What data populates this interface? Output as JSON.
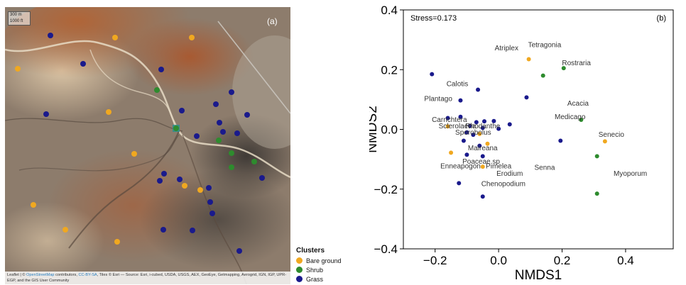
{
  "map": {
    "panel_label": "(a)",
    "scale_labels": [
      "300 m",
      "1000 ft"
    ],
    "attribution": {
      "pre": "Leaflet | © ",
      "link1": "OpenStreetMap",
      "mid": " contributors, ",
      "link2": "CC-BY-SA",
      "rest": ", Tiles © Esri — Source: Esri, i-cubed, USDA, USGS, AEX, GeoEye, Getmapping, Aerogrid, IGN, IGP, UPR-EGP, and the GIS User Community"
    }
  },
  "legend": {
    "title": "Clusters",
    "items": [
      {
        "label": "Bare ground",
        "color": "#f0a820"
      },
      {
        "label": "Shrub",
        "color": "#2e8b2e"
      },
      {
        "label": "Grass",
        "color": "#1a1a8c"
      }
    ]
  },
  "chart_data": {
    "type": "scatter",
    "panel_label": "(b)",
    "stress_label": "Stress=0.173",
    "xlabel": "NMDS1",
    "ylabel": "NMDS2",
    "xlim": [
      -0.3,
      0.55
    ],
    "ylim": [
      -0.4,
      0.4
    ],
    "xticks": [
      -0.2,
      0.0,
      0.2,
      0.4
    ],
    "yticks": [
      -0.4,
      -0.2,
      0.0,
      0.2,
      0.4
    ],
    "xticklabels": [
      "−0.2",
      "0.0",
      "0.2",
      "0.4"
    ],
    "yticklabels": [
      "−0.4",
      "−0.2",
      "0.0",
      "0.2",
      "0.4"
    ],
    "series": [
      {
        "color": "#f0a820",
        "points": [
          {
            "x": 0.095,
            "y": 0.235
          },
          {
            "x": -0.16,
            "y": 0.01
          },
          {
            "x": -0.15,
            "y": -0.078
          },
          {
            "x": -0.05,
            "y": -0.125
          },
          {
            "x": -0.035,
            "y": -0.048
          },
          {
            "x": -0.06,
            "y": -0.015
          },
          {
            "x": 0.335,
            "y": -0.04
          }
        ]
      },
      {
        "color": "#2e8b2e",
        "points": [
          {
            "x": 0.14,
            "y": 0.18
          },
          {
            "x": 0.205,
            "y": 0.205
          },
          {
            "x": 0.26,
            "y": 0.032
          },
          {
            "x": 0.31,
            "y": -0.09
          },
          {
            "x": 0.31,
            "y": -0.215
          }
        ]
      },
      {
        "color": "#1a1a8c",
        "points": [
          {
            "x": -0.21,
            "y": 0.185
          },
          {
            "x": -0.065,
            "y": 0.133
          },
          {
            "x": -0.12,
            "y": 0.097
          },
          {
            "x": 0.088,
            "y": 0.107
          },
          {
            "x": -0.16,
            "y": 0.038
          },
          {
            "x": -0.12,
            "y": 0.042
          },
          {
            "x": -0.07,
            "y": 0.024
          },
          {
            "x": -0.045,
            "y": 0.027
          },
          {
            "x": -0.015,
            "y": 0.028
          },
          {
            "x": 0.035,
            "y": 0.017
          },
          {
            "x": -0.09,
            "y": 0.012
          },
          {
            "x": -0.05,
            "y": 0.005
          },
          {
            "x": -0.1,
            "y": -0.01
          },
          {
            "x": -0.08,
            "y": -0.018
          },
          {
            "x": 0.0,
            "y": 0.002
          },
          {
            "x": -0.11,
            "y": -0.038
          },
          {
            "x": -0.06,
            "y": -0.055
          },
          {
            "x": -0.1,
            "y": -0.085
          },
          {
            "x": -0.05,
            "y": -0.09
          },
          {
            "x": 0.195,
            "y": -0.038
          },
          {
            "x": -0.125,
            "y": -0.18
          },
          {
            "x": -0.05,
            "y": -0.225
          }
        ]
      }
    ],
    "annotations": [
      {
        "text": "Tetragonia",
        "x": 0.145,
        "y": 0.275
      },
      {
        "text": "Atriplex",
        "x": 0.025,
        "y": 0.265
      },
      {
        "text": "Rostraria",
        "x": 0.245,
        "y": 0.215
      },
      {
        "text": "Calotis",
        "x": -0.13,
        "y": 0.145
      },
      {
        "text": "Plantago",
        "x": -0.19,
        "y": 0.095
      },
      {
        "text": "Acacia",
        "x": 0.25,
        "y": 0.08
      },
      {
        "text": "Medicago",
        "x": 0.225,
        "y": 0.035
      },
      {
        "text": "Carrichtera",
        "x": -0.155,
        "y": 0.025
      },
      {
        "text": "Sclerolaena",
        "x": -0.13,
        "y": 0.003
      },
      {
        "text": "Rhodanthe",
        "x": -0.05,
        "y": 0.003
      },
      {
        "text": "Sporobolus",
        "x": -0.08,
        "y": -0.018
      },
      {
        "text": "Senecio",
        "x": 0.355,
        "y": -0.025
      },
      {
        "text": "Maireana",
        "x": -0.05,
        "y": -0.07
      },
      {
        "text": "Poaceae.sp",
        "x": -0.055,
        "y": -0.115
      },
      {
        "text": "Enneapogon",
        "x": -0.12,
        "y": -0.13
      },
      {
        "text": "Pimelea",
        "x": 0.0,
        "y": -0.13
      },
      {
        "text": "Senna",
        "x": 0.145,
        "y": -0.135
      },
      {
        "text": "Erodium",
        "x": 0.035,
        "y": -0.155
      },
      {
        "text": "Myoporum",
        "x": 0.415,
        "y": -0.155
      },
      {
        "text": "Chenopodium",
        "x": 0.015,
        "y": -0.19
      }
    ]
  }
}
